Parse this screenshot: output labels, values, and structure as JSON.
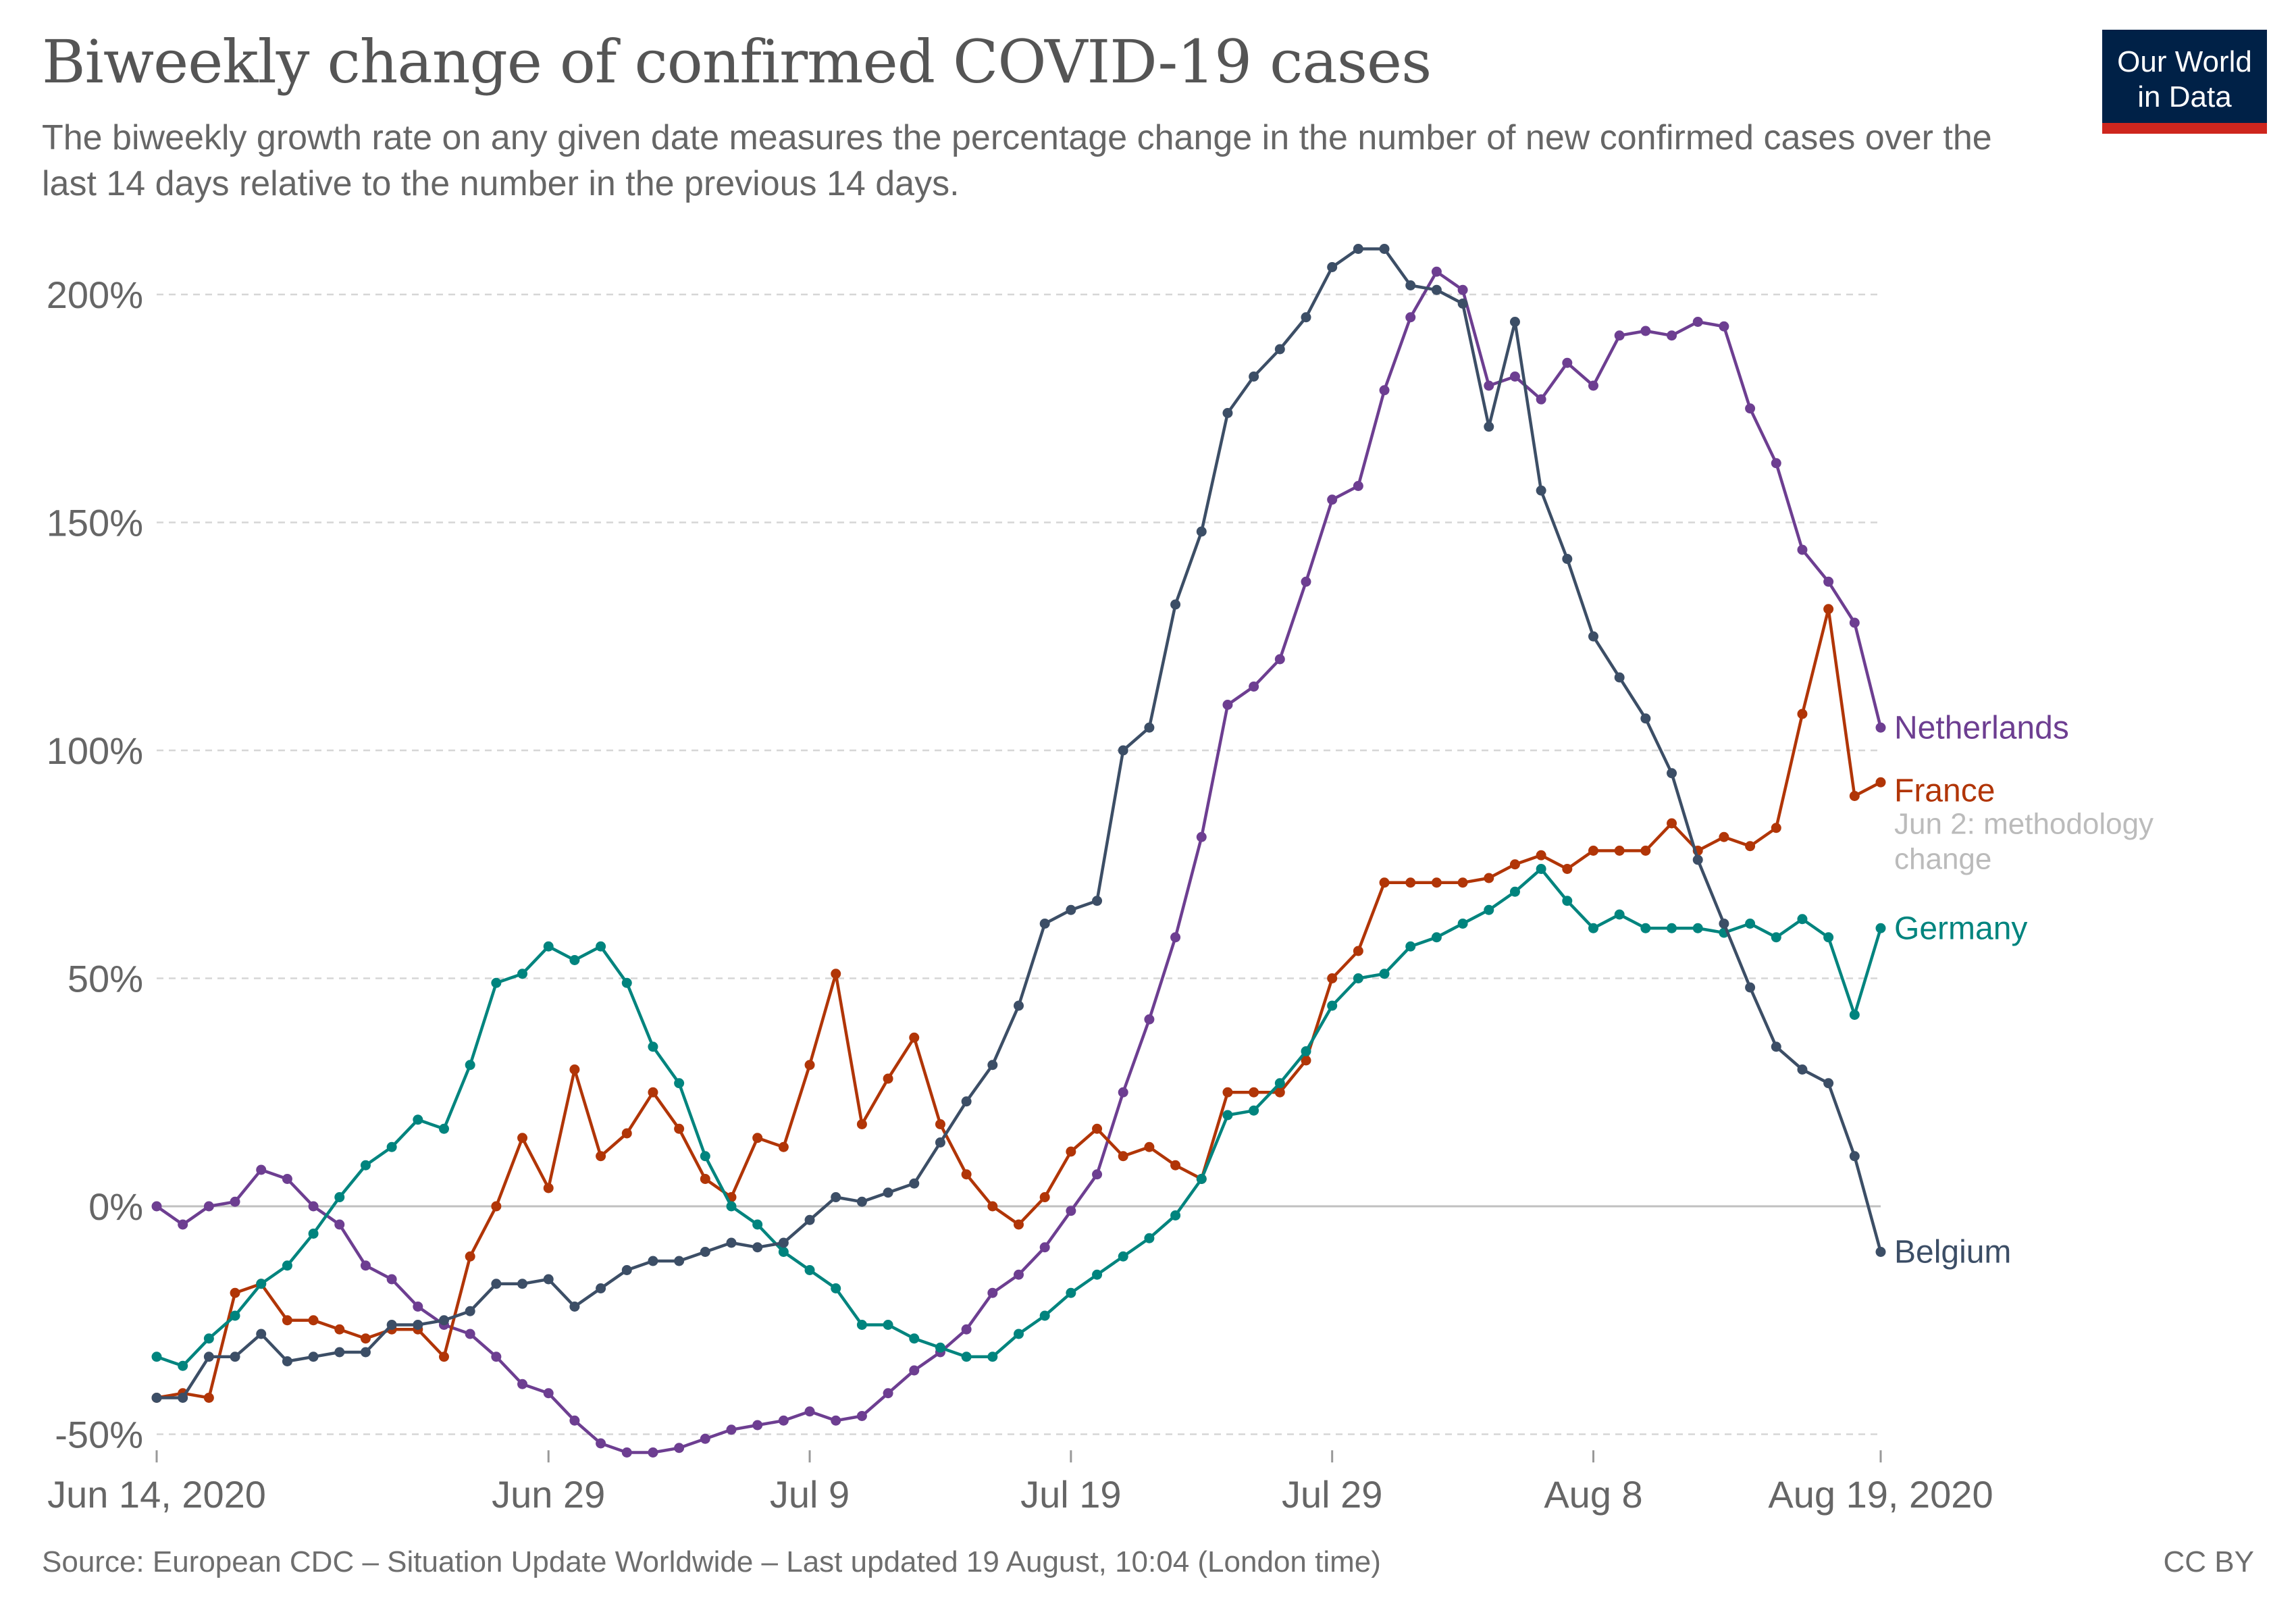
{
  "header": {
    "title": "Biweekly change of confirmed COVID-19 cases",
    "subtitle": "The biweekly growth rate on any given date measures the percentage change in the number of new confirmed cases over the last 14 days relative to the number in the previous 14 days."
  },
  "logo": {
    "line1": "Our World",
    "line2": "in Data"
  },
  "footer": {
    "source": "Source: European CDC – Situation Update Worldwide – Last updated 19 August, 10:04 (London time)",
    "license": "CC BY"
  },
  "chart_data": {
    "type": "line",
    "title": "Biweekly change of confirmed COVID-19 cases",
    "xlabel": "",
    "ylabel": "",
    "x_range": [
      "Jun 14, 2020",
      "Aug 19, 2020"
    ],
    "ylim": [
      -55,
      215
    ],
    "y_ticks": [
      -50,
      0,
      50,
      100,
      150,
      200
    ],
    "y_tick_labels": [
      "-50%",
      "0%",
      "50%",
      "100%",
      "150%",
      "200%"
    ],
    "x_ticks": [
      0,
      15,
      25,
      35,
      45,
      55,
      66
    ],
    "x_tick_labels": [
      "Jun 14, 2020",
      "Jun 29",
      "Jul 9",
      "Jul 19",
      "Jul 29",
      "Aug 8",
      "Aug 19, 2020"
    ],
    "grid": true,
    "annotation": {
      "date": "Jun 2",
      "text": ": methodology change",
      "series": "France"
    },
    "series": [
      {
        "name": "Netherlands",
        "color": "#6d3e91",
        "values": [
          0,
          -4,
          0,
          1,
          8,
          6,
          0,
          -4,
          -13,
          -16,
          -22,
          -26,
          -28,
          -33,
          -39,
          -41,
          -47,
          -52,
          -54,
          -54,
          -53,
          -51,
          -49,
          -48,
          -47,
          -45,
          -47,
          -46,
          -41,
          -36,
          -32,
          -27,
          -19,
          -15,
          -9,
          -1,
          7,
          25,
          41,
          59,
          81,
          110,
          114,
          120,
          137,
          155,
          158,
          179,
          195,
          205,
          201,
          180,
          182,
          177,
          185,
          180,
          191,
          192,
          191,
          194,
          193,
          175,
          163,
          144,
          137,
          128,
          105
        ]
      },
      {
        "name": "France",
        "color": "#b13507",
        "values": [
          -42,
          -41,
          -42,
          -19,
          -17,
          -25,
          -25,
          -27,
          -29,
          -27,
          -27,
          -33,
          -11,
          0,
          15,
          4,
          30,
          11,
          16,
          25,
          17,
          6,
          2,
          15,
          13,
          31,
          51,
          18,
          28,
          37,
          18,
          7,
          0,
          -4,
          2,
          12,
          17,
          11,
          13,
          9,
          6,
          25,
          25,
          25,
          32,
          50,
          56,
          71,
          71,
          71,
          71,
          72,
          75,
          77,
          74,
          78,
          78,
          78,
          84,
          78,
          81,
          79,
          83,
          108,
          131,
          90,
          93
        ]
      },
      {
        "name": "Germany",
        "color": "#00847e",
        "values": [
          -33,
          -35,
          -29,
          -24,
          -17,
          -13,
          -6,
          2,
          9,
          13,
          19,
          17,
          31,
          49,
          51,
          57,
          54,
          57,
          49,
          35,
          27,
          11,
          0,
          -4,
          -10,
          -14,
          -18,
          -26,
          -26,
          -29,
          -31,
          -33,
          -33,
          -28,
          -24,
          -19,
          -15,
          -11,
          -7,
          -2,
          6,
          20,
          21,
          27,
          34,
          44,
          50,
          51,
          57,
          59,
          62,
          65,
          69,
          74,
          67,
          61,
          64,
          61,
          61,
          61,
          60,
          62,
          59,
          63,
          59,
          42,
          61
        ]
      },
      {
        "name": "Belgium",
        "color": "#3c4e66",
        "values": [
          -42,
          -42,
          -33,
          -33,
          -28,
          -34,
          -33,
          -32,
          -32,
          -26,
          -26,
          -25,
          -23,
          -17,
          -17,
          -16,
          -22,
          -18,
          -14,
          -12,
          -12,
          -10,
          -8,
          -9,
          -8,
          -3,
          2,
          1,
          3,
          5,
          14,
          23,
          31,
          44,
          62,
          65,
          67,
          100,
          105,
          132,
          148,
          174,
          182,
          188,
          195,
          206,
          210,
          210,
          202,
          201,
          198,
          171,
          194,
          157,
          142,
          125,
          116,
          107,
          95,
          76,
          62,
          48,
          35,
          30,
          27,
          11,
          -10
        ]
      }
    ],
    "legend": "inline-right"
  }
}
